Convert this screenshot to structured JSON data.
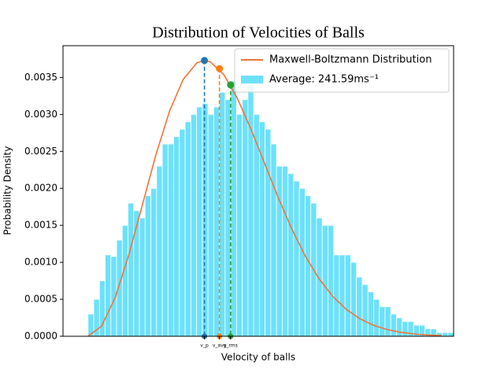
{
  "chart_data": {
    "type": "histogram",
    "title": "Distribution of Velocities of Balls",
    "x_label": "Velocity of balls",
    "y_label": "Probability Density",
    "xlim": [
      -46,
      672
    ],
    "ylim": [
      0,
      0.00393
    ],
    "xticks": [
      {
        "value": 214,
        "label": "v_p"
      },
      {
        "value": 241.59,
        "label": "v_avg"
      },
      {
        "value": 262,
        "label": "v_rms"
      }
    ],
    "yticks": [
      {
        "value": 0,
        "label": "0.0000"
      },
      {
        "value": 0.0005,
        "label": "0.0005"
      },
      {
        "value": 0.001,
        "label": "0.0010"
      },
      {
        "value": 0.0015,
        "label": "0.0015"
      },
      {
        "value": 0.002,
        "label": "0.0020"
      },
      {
        "value": 0.0025,
        "label": "0.0025"
      },
      {
        "value": 0.003,
        "label": "0.0030"
      },
      {
        "value": 0.0035,
        "label": "0.0035"
      }
    ],
    "legend": "upper right",
    "series": [
      {
        "name": "Maxwell-Boltzmann Distribution",
        "type": "line",
        "color": "#f0743a",
        "x": [
          0,
          25,
          50,
          75,
          100,
          125,
          150,
          175,
          200,
          214,
          225,
          250,
          275,
          300,
          325,
          350,
          375,
          400,
          425,
          450,
          475,
          500,
          525,
          550,
          575,
          600,
          625,
          650
        ],
        "values": [
          0,
          0.000137,
          0.000524,
          0.001101,
          0.00178,
          0.00246,
          0.003048,
          0.003474,
          0.003698,
          0.00373,
          0.003711,
          0.003534,
          0.003211,
          0.002792,
          0.00233,
          0.001869,
          0.001444,
          0.001076,
          0.000775,
          0.000539,
          0.000362,
          0.000236,
          0.000148,
          9.07e-05,
          5.36e-05,
          3.07e-05,
          1.71e-05,
          9.2e-06
        ]
      },
      {
        "name": "Average: 241.59ms⁻¹",
        "type": "histogram",
        "color": "#6ce1fb",
        "bins": [
          0,
          10.5,
          21,
          31.5,
          42,
          52.5,
          63,
          73.5,
          84,
          94.5,
          105,
          115.5,
          126,
          136.5,
          147,
          157.5,
          168,
          178.5,
          189,
          199.5,
          210,
          220.5,
          231,
          241.5,
          252,
          262.5,
          273,
          283.5,
          294,
          304.5,
          315,
          325.5,
          336,
          346.5,
          357,
          367.5,
          378,
          388.5,
          399,
          409.5,
          420,
          430.5,
          441,
          451.5,
          462,
          472.5,
          483,
          493.5,
          504,
          514.5,
          525,
          535.5,
          546,
          556.5,
          567,
          577.5,
          588,
          598.5,
          609,
          619.5,
          630,
          640.5,
          651,
          661.5,
          672
        ],
        "values": [
          0.0003,
          0.0005,
          0.00075,
          0.0011,
          0.00108,
          0.0013,
          0.0015,
          0.0018,
          0.0017,
          0.0016,
          0.0019,
          0.002,
          0.0023,
          0.0026,
          0.0026,
          0.0027,
          0.0028,
          0.0029,
          0.003,
          0.0031,
          0.00315,
          0.003,
          0.0031,
          0.0033,
          0.0032,
          0.00345,
          0.003,
          0.0032,
          0.0034,
          0.003,
          0.0029,
          0.0028,
          0.0026,
          0.0023,
          0.0023,
          0.0022,
          0.0021,
          0.002,
          0.0019,
          0.0018,
          0.0016,
          0.0015,
          0.0015,
          0.0011,
          0.0011,
          0.0011,
          0.001,
          0.0008,
          0.0007,
          0.0006,
          0.0005,
          0.0004,
          0.0004,
          0.0003,
          0.00025,
          0.0002,
          0.0002,
          0.00015,
          0.00015,
          0.0001,
          0.0001,
          5e-05,
          5e-05,
          5e-05
        ]
      }
    ],
    "points": [
      {
        "x": 214,
        "y": 0.00373,
        "color": "#1f77b4"
      },
      {
        "x": 241.59,
        "y": 0.00362,
        "color": "#ff7f0e"
      },
      {
        "x": 262,
        "y": 0.0034,
        "color": "#2ca02c"
      }
    ]
  }
}
